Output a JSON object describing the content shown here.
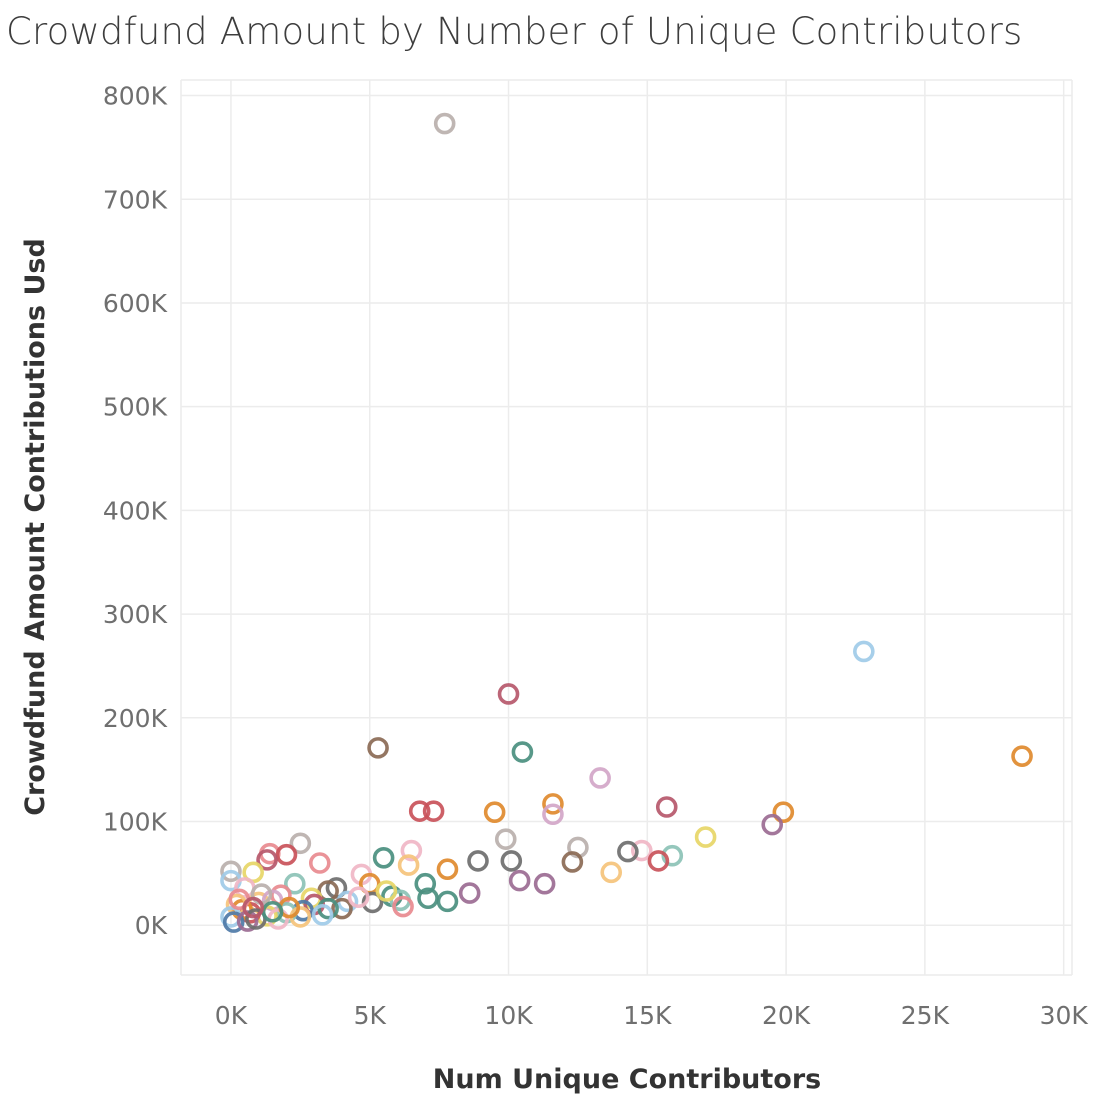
{
  "chart_data": {
    "type": "scatter",
    "title": "Crowdfund Amount by Number of Unique Contributors",
    "xlabel": "Num Unique Contributors",
    "ylabel": "Crowdfund Amount Contributions Usd",
    "xlim": [
      -1800,
      30300
    ],
    "ylim": [
      -48000,
      815000
    ],
    "xticks": [
      0,
      5000,
      10000,
      15000,
      20000,
      25000,
      30000
    ],
    "xtick_labels": [
      "0K",
      "5K",
      "10K",
      "15K",
      "20K",
      "25K",
      "30K"
    ],
    "yticks": [
      0,
      100000,
      200000,
      300000,
      400000,
      500000,
      600000,
      700000,
      800000
    ],
    "ytick_labels": [
      "0K",
      "100K",
      "200K",
      "300K",
      "400K",
      "500K",
      "600K",
      "700K",
      "800K"
    ],
    "grid": true,
    "legend": "none",
    "marker": "open-circle",
    "points": [
      {
        "x": 7700,
        "y": 773000,
        "color": "#bab0ac"
      },
      {
        "x": 22800,
        "y": 264000,
        "color": "#a0cbe8"
      },
      {
        "x": 10000,
        "y": 223000,
        "color": "#b6586b"
      },
      {
        "x": 5300,
        "y": 171000,
        "color": "#8b6a55"
      },
      {
        "x": 10500,
        "y": 167000,
        "color": "#4a8f7f"
      },
      {
        "x": 28500,
        "y": 163000,
        "color": "#e08a2e"
      },
      {
        "x": 13300,
        "y": 142000,
        "color": "#d2a6c8"
      },
      {
        "x": 11600,
        "y": 117000,
        "color": "#e08a2e"
      },
      {
        "x": 15700,
        "y": 114000,
        "color": "#b6586b"
      },
      {
        "x": 6800,
        "y": 110000,
        "color": "#c9535a"
      },
      {
        "x": 7300,
        "y": 110000,
        "color": "#c9535a"
      },
      {
        "x": 9500,
        "y": 109000,
        "color": "#e08a2e"
      },
      {
        "x": 19900,
        "y": 109000,
        "color": "#e08a2e"
      },
      {
        "x": 11600,
        "y": 107000,
        "color": "#d2a6c8"
      },
      {
        "x": 19500,
        "y": 97000,
        "color": "#9b6b92"
      },
      {
        "x": 17100,
        "y": 85000,
        "color": "#e7d667"
      },
      {
        "x": 9900,
        "y": 83000,
        "color": "#bab0ac"
      },
      {
        "x": 2500,
        "y": 79000,
        "color": "#bab0ac"
      },
      {
        "x": 12500,
        "y": 75000,
        "color": "#bab0ac"
      },
      {
        "x": 14800,
        "y": 72000,
        "color": "#f0b6c6"
      },
      {
        "x": 6500,
        "y": 72000,
        "color": "#f0b6c6"
      },
      {
        "x": 14300,
        "y": 71000,
        "color": "#6e6e6e"
      },
      {
        "x": 1400,
        "y": 69000,
        "color": "#e88a8f"
      },
      {
        "x": 2000,
        "y": 68000,
        "color": "#c9535a"
      },
      {
        "x": 15900,
        "y": 67000,
        "color": "#8cc2b6"
      },
      {
        "x": 5500,
        "y": 65000,
        "color": "#4a8f7f"
      },
      {
        "x": 1300,
        "y": 63000,
        "color": "#b6586b"
      },
      {
        "x": 8900,
        "y": 62000,
        "color": "#6e6e6e"
      },
      {
        "x": 10100,
        "y": 62000,
        "color": "#6e6e6e"
      },
      {
        "x": 15400,
        "y": 62000,
        "color": "#c9535a"
      },
      {
        "x": 12300,
        "y": 61000,
        "color": "#8b6a55"
      },
      {
        "x": 3200,
        "y": 60000,
        "color": "#e88a8f"
      },
      {
        "x": 6400,
        "y": 58000,
        "color": "#f5c37b"
      },
      {
        "x": 7800,
        "y": 54000,
        "color": "#e08a2e"
      },
      {
        "x": 0,
        "y": 52000,
        "color": "#bab0ac"
      },
      {
        "x": 13700,
        "y": 51000,
        "color": "#f5c37b"
      },
      {
        "x": 4700,
        "y": 49000,
        "color": "#f0b6c6"
      },
      {
        "x": 800,
        "y": 51000,
        "color": "#e7d667"
      },
      {
        "x": 0,
        "y": 43000,
        "color": "#a0cbe8"
      },
      {
        "x": 10400,
        "y": 43000,
        "color": "#9b6b92"
      },
      {
        "x": 11300,
        "y": 40000,
        "color": "#9b6b92"
      },
      {
        "x": 2300,
        "y": 40000,
        "color": "#8cc2b6"
      },
      {
        "x": 5000,
        "y": 40000,
        "color": "#e08a2e"
      },
      {
        "x": 7000,
        "y": 40000,
        "color": "#4a8f7f"
      },
      {
        "x": 3800,
        "y": 36000,
        "color": "#6e6e6e"
      },
      {
        "x": 500,
        "y": 36000,
        "color": "#f0b6c6"
      },
      {
        "x": 8600,
        "y": 31000,
        "color": "#9b6b92"
      },
      {
        "x": 3500,
        "y": 33000,
        "color": "#8b6a55"
      },
      {
        "x": 1800,
        "y": 29000,
        "color": "#e88a8f"
      },
      {
        "x": 5800,
        "y": 28000,
        "color": "#4a8f7f"
      },
      {
        "x": 2900,
        "y": 26000,
        "color": "#e7d667"
      },
      {
        "x": 6100,
        "y": 24000,
        "color": "#8cc2b6"
      },
      {
        "x": 7100,
        "y": 26000,
        "color": "#4a8f7f"
      },
      {
        "x": 7800,
        "y": 23000,
        "color": "#4a8f7f"
      },
      {
        "x": 4200,
        "y": 23000,
        "color": "#a0cbe8"
      },
      {
        "x": 5100,
        "y": 22000,
        "color": "#6e6e6e"
      },
      {
        "x": 6200,
        "y": 18000,
        "color": "#e88a8f"
      },
      {
        "x": 1000,
        "y": 22000,
        "color": "#f5c37b"
      },
      {
        "x": 1500,
        "y": 24000,
        "color": "#d2a6c8"
      },
      {
        "x": 3000,
        "y": 20000,
        "color": "#b6586b"
      },
      {
        "x": 4000,
        "y": 16000,
        "color": "#8b6a55"
      },
      {
        "x": 3500,
        "y": 16000,
        "color": "#4a8f7f"
      },
      {
        "x": 2600,
        "y": 14000,
        "color": "#4e79a7"
      },
      {
        "x": 2000,
        "y": 12000,
        "color": "#8cc2b6"
      },
      {
        "x": 1300,
        "y": 9000,
        "color": "#e7d667"
      },
      {
        "x": 700,
        "y": 12000,
        "color": "#c9535a"
      },
      {
        "x": 400,
        "y": 15000,
        "color": "#e08a2e"
      },
      {
        "x": 200,
        "y": 20000,
        "color": "#f5c37b"
      },
      {
        "x": 0,
        "y": 8000,
        "color": "#a0cbe8"
      },
      {
        "x": 100,
        "y": 3000,
        "color": "#4e79a7"
      },
      {
        "x": 600,
        "y": 4000,
        "color": "#9b6b92"
      },
      {
        "x": 900,
        "y": 6000,
        "color": "#6e6e6e"
      },
      {
        "x": 1700,
        "y": 6000,
        "color": "#f0b6c6"
      },
      {
        "x": 2500,
        "y": 8000,
        "color": "#f5c37b"
      },
      {
        "x": 300,
        "y": 25000,
        "color": "#e88a8f"
      },
      {
        "x": 1100,
        "y": 30000,
        "color": "#bab0ac"
      },
      {
        "x": 4600,
        "y": 27000,
        "color": "#f0b6c6"
      },
      {
        "x": 5600,
        "y": 33000,
        "color": "#e7d667"
      },
      {
        "x": 2100,
        "y": 17000,
        "color": "#e08a2e"
      },
      {
        "x": 3300,
        "y": 10000,
        "color": "#a0cbe8"
      },
      {
        "x": 1500,
        "y": 13000,
        "color": "#4a8f7f"
      },
      {
        "x": 800,
        "y": 17000,
        "color": "#b6586b"
      }
    ]
  }
}
